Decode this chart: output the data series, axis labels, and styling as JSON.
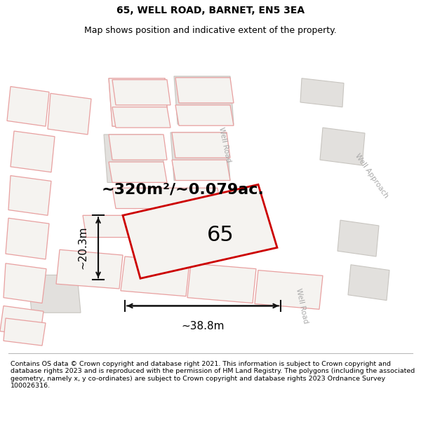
{
  "title": "65, WELL ROAD, BARNET, EN5 3EA",
  "subtitle": "Map shows position and indicative extent of the property.",
  "footer": "Contains OS data © Crown copyright and database right 2021. This information is subject to Crown copyright and database rights 2023 and is reproduced with the permission of HM Land Registry. The polygons (including the associated geometry, namely x, y co-ordinates) are subject to Crown copyright and database rights 2023 Ordnance Survey 100026316.",
  "area_label": "~320m²/~0.079ac.",
  "width_label": "~38.8m",
  "height_label": "~20.3m",
  "plot_number": "65",
  "map_bg": "#f5f3f0",
  "grey_fill": "#e2e0dd",
  "grey_stroke": "#c8c5c0",
  "pink_stroke": "#e8a0a0",
  "pink_fill": "#f5f3f0",
  "red_stroke": "#cc0000",
  "road_label_color": "#aaaaaa",
  "dim_color": "#111111",
  "title_fontsize": 10,
  "subtitle_fontsize": 9,
  "area_fontsize": 16,
  "dim_fontsize": 11,
  "plot_num_fontsize": 22
}
